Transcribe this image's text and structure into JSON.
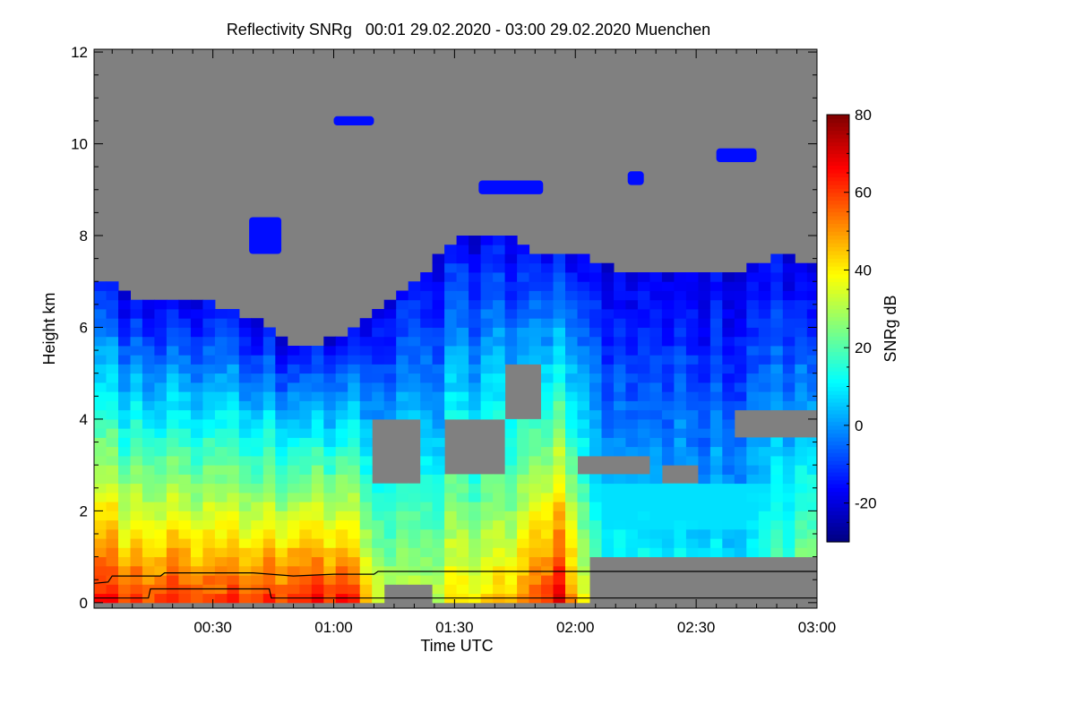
{
  "chart_data": {
    "type": "heatmap",
    "title": "Reflectivity SNRg   00:01 29.02.2020 - 03:00 29.02.2020 Muenchen",
    "xlabel": "Time UTC",
    "ylabel": "Height km",
    "xlim_minutes": [
      0.5,
      180
    ],
    "ylim": [
      -0.12,
      12.06
    ],
    "x_tick_labels": [
      {
        "minute": 30,
        "label": "00:30"
      },
      {
        "minute": 60,
        "label": "01:00"
      },
      {
        "minute": 90,
        "label": "01:30"
      },
      {
        "minute": 120,
        "label": "02:00"
      },
      {
        "minute": 150,
        "label": "02:30"
      },
      {
        "minute": 180,
        "label": "03:00"
      }
    ],
    "y_tick_labels": [
      "0",
      "2",
      "4",
      "6",
      "8",
      "10",
      "12"
    ],
    "colorbar": {
      "label": "SNRg dB",
      "range": [
        -30,
        80
      ],
      "ticks": [
        "-20",
        "0",
        "20",
        "40",
        "60",
        "80"
      ],
      "colormap": "jet",
      "no_signal_color": "#808080"
    },
    "cloud_top_km": {
      "minutes": [
        0,
        10,
        20,
        30,
        40,
        50,
        60,
        70,
        80,
        90,
        100,
        110,
        120,
        130,
        140,
        150,
        160,
        170,
        180
      ],
      "values": [
        7.0,
        6.5,
        6.5,
        6.4,
        6.0,
        5.5,
        5.7,
        6.4,
        7.0,
        8.0,
        8.0,
        7.5,
        7.6,
        7.0,
        7.1,
        7.1,
        7.2,
        7.5,
        7.2
      ]
    },
    "near_surface_snr_db": {
      "minutes": [
        0,
        10,
        20,
        30,
        40,
        50,
        60,
        65,
        70,
        80,
        90,
        100,
        110,
        115,
        120,
        125,
        140,
        160,
        170,
        180
      ],
      "values": [
        62,
        58,
        62,
        56,
        60,
        62,
        64,
        55,
        35,
        32,
        40,
        42,
        58,
        66,
        40,
        18,
        16,
        15,
        25,
        40
      ]
    },
    "no_signal_regions": [
      {
        "t0": 68,
        "t1": 80,
        "h0": 2.6,
        "h1": 4.0
      },
      {
        "t0": 85,
        "t1": 100,
        "h0": 2.8,
        "h1": 3.9
      },
      {
        "t0": 100,
        "t1": 110,
        "h0": 4.0,
        "h1": 5.2
      },
      {
        "t0": 118,
        "t1": 138,
        "h0": 2.7,
        "h1": 3.2
      },
      {
        "t0": 140,
        "t1": 150,
        "h0": 2.5,
        "h1": 3.0
      },
      {
        "t0": 157,
        "t1": 180,
        "h0": 3.5,
        "h1": 4.2
      },
      {
        "t0": 72,
        "t1": 82,
        "h0": 0.0,
        "h1": 0.3
      },
      {
        "t0": 122,
        "t1": 178,
        "h0": 0.0,
        "h1": 0.9
      }
    ],
    "cirrus_patches": [
      {
        "t0": 39,
        "t1": 47,
        "h0": 7.6,
        "h1": 8.4
      },
      {
        "t0": 96,
        "t1": 112,
        "h0": 8.9,
        "h1": 9.2
      },
      {
        "t0": 133,
        "t1": 137,
        "h0": 9.1,
        "h1": 9.4
      },
      {
        "t0": 155,
        "t1": 165,
        "h0": 9.6,
        "h1": 9.9
      },
      {
        "t0": 60,
        "t1": 70,
        "h0": 10.4,
        "h1": 10.6
      }
    ],
    "overlay_lines": [
      {
        "name": "upper",
        "minutes": [
          0,
          4,
          5,
          17,
          18,
          40,
          50,
          60,
          70,
          71,
          180
        ],
        "values": [
          0.42,
          0.45,
          0.58,
          0.58,
          0.65,
          0.65,
          0.58,
          0.62,
          0.62,
          0.68,
          0.68
        ]
      },
      {
        "name": "lower",
        "minutes": [
          0,
          14,
          14.5,
          44,
          44.5,
          180
        ],
        "values": [
          0.1,
          0.1,
          0.3,
          0.3,
          0.1,
          0.1
        ]
      }
    ]
  }
}
